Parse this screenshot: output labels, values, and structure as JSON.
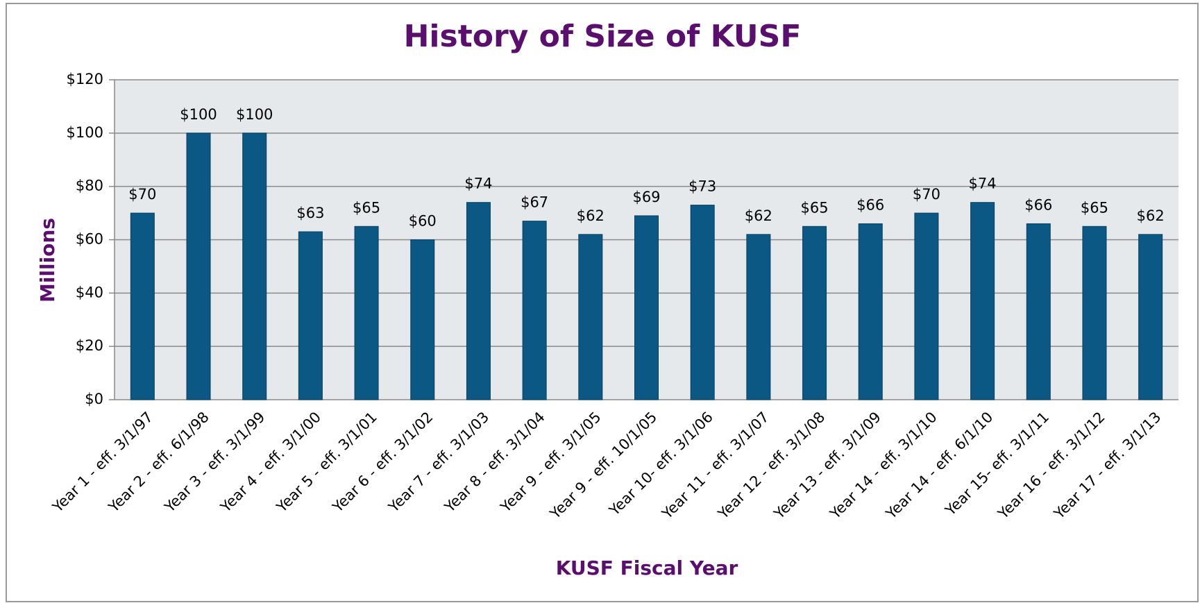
{
  "chart_data": {
    "type": "bar",
    "title": "History of Size of KUSF",
    "x_label": "KUSF Fiscal Year",
    "y_label": "Millions",
    "categories": [
      "Year 1 - eff. 3/1/97",
      "Year 2 - eff. 6/1/98",
      "Year 3 - eff. 3/1/99",
      "Year 4 - eff. 3/1/00",
      "Year 5 - eff. 3/1/01",
      "Year 6 - eff. 3/1/02",
      "Year 7 - eff. 3/1/03",
      "Year 8 - eff. 3/1/04",
      "Year 9 - eff. 3/1/05",
      "Year 9 - eff. 10/1/05",
      "Year 10- eff. 3/1/06",
      "Year 11 - eff. 3/1/07",
      "Year 12 - eff. 3/1/08",
      "Year 13 - eff. 3/1/09",
      "Year 14 - eff. 3/1/10",
      "Year 14 - eff. 6/1/10",
      "Year 15- eff. 3/1/11",
      "Year 16 - eff. 3/1/12",
      "Year 17 - eff. 3/1/13"
    ],
    "values": [
      70,
      100,
      100,
      63,
      65,
      60,
      74,
      67,
      62,
      69,
      73,
      62,
      65,
      66,
      70,
      74,
      66,
      65,
      62
    ],
    "value_labels": [
      "$70",
      "$100",
      "$100",
      "$63",
      "$65",
      "$60",
      "$74",
      "$67",
      "$62",
      "$69",
      "$73",
      "$62",
      "$65",
      "$66",
      "$70",
      "$74",
      "$66",
      "$65",
      "$62"
    ],
    "color": "#0b5884",
    "ylim": [
      0,
      120
    ],
    "yticks": [
      {
        "value": 0,
        "label": "$0"
      },
      {
        "value": 20,
        "label": "$20"
      },
      {
        "value": 40,
        "label": "$40"
      },
      {
        "value": 60,
        "label": "$60"
      },
      {
        "value": 80,
        "label": "$80"
      },
      {
        "value": 100,
        "label": "$100"
      },
      {
        "value": 120,
        "label": "$120"
      }
    ],
    "grid": true
  }
}
